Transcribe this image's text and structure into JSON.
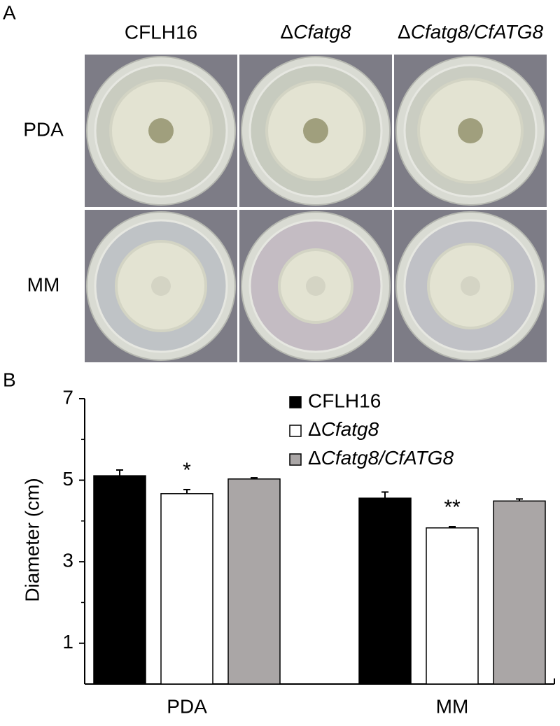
{
  "panel_a": {
    "label": "A",
    "columns": [
      "CFLH16",
      "ΔCfatg8",
      "ΔCfatg8/CfATG8"
    ],
    "rows": [
      "PDA",
      "MM"
    ]
  },
  "panel_b": {
    "label": "B"
  },
  "chart_data": {
    "type": "bar",
    "y_label": "Diameter (cm)",
    "categories": [
      "PDA",
      "MM"
    ],
    "series": [
      {
        "name": "CFLH16",
        "color": "#000000",
        "values": [
          5.11,
          4.56
        ],
        "errors": [
          0.14,
          0.15
        ]
      },
      {
        "name": "ΔCfatg8",
        "color": "#ffffff",
        "values": [
          4.67,
          3.83
        ],
        "errors": [
          0.1,
          0.03
        ],
        "annotations": [
          "*",
          "**"
        ]
      },
      {
        "name": "ΔCfatg8/CfATG8",
        "color": "#aaa6a6",
        "values": [
          5.03,
          4.49
        ],
        "errors": [
          0.03,
          0.05
        ]
      }
    ],
    "ylim": [
      0,
      7
    ],
    "yticks": [
      1,
      3,
      5,
      7
    ],
    "yminor_ticks": [
      2,
      4,
      6
    ],
    "legend": "top-right",
    "grid": false
  }
}
